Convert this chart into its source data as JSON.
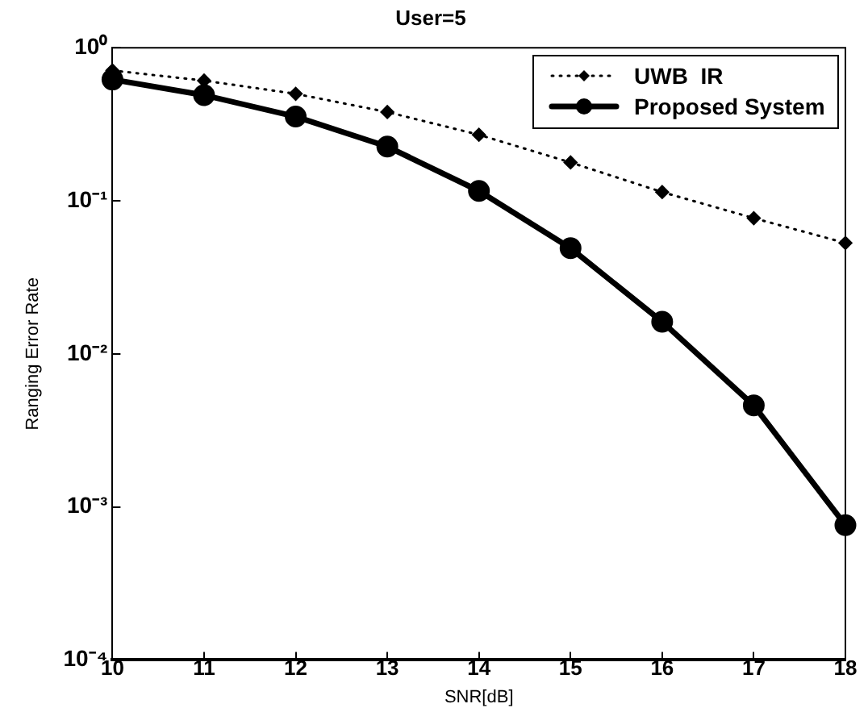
{
  "chart_data": {
    "type": "line",
    "title": "User=5",
    "xlabel": "SNR[dB]",
    "ylabel": "Ranging Error Rate",
    "x": [
      10,
      11,
      12,
      13,
      14,
      15,
      16,
      17,
      18
    ],
    "series": [
      {
        "name": "UWB  IR",
        "color": "#000000",
        "marker": "diamond",
        "line_style": "dotted",
        "values": [
          0.71,
          0.61,
          0.5,
          0.38,
          0.27,
          0.178,
          0.114,
          0.077,
          0.053
        ]
      },
      {
        "name": "Proposed System",
        "color": "#000000",
        "marker": "circle",
        "line_style": "solid",
        "values": [
          0.62,
          0.49,
          0.355,
          0.226,
          0.116,
          0.049,
          0.0162,
          0.0046,
          0.00076
        ]
      }
    ],
    "log": "y",
    "xlim": [
      10,
      18
    ],
    "ylim": [
      0.0001,
      1
    ],
    "xticks": [
      10,
      11,
      12,
      13,
      14,
      15,
      16,
      17,
      18
    ],
    "yticks": [
      {
        "value": 0.0001,
        "label": "10⁻⁴"
      },
      {
        "value": 0.001,
        "label": "10⁻³"
      },
      {
        "value": 0.01,
        "label": "10⁻²"
      },
      {
        "value": 0.1,
        "label": "10⁻¹"
      },
      {
        "value": 1,
        "label": "10⁰"
      }
    ],
    "grid": false,
    "legend": "top right"
  }
}
